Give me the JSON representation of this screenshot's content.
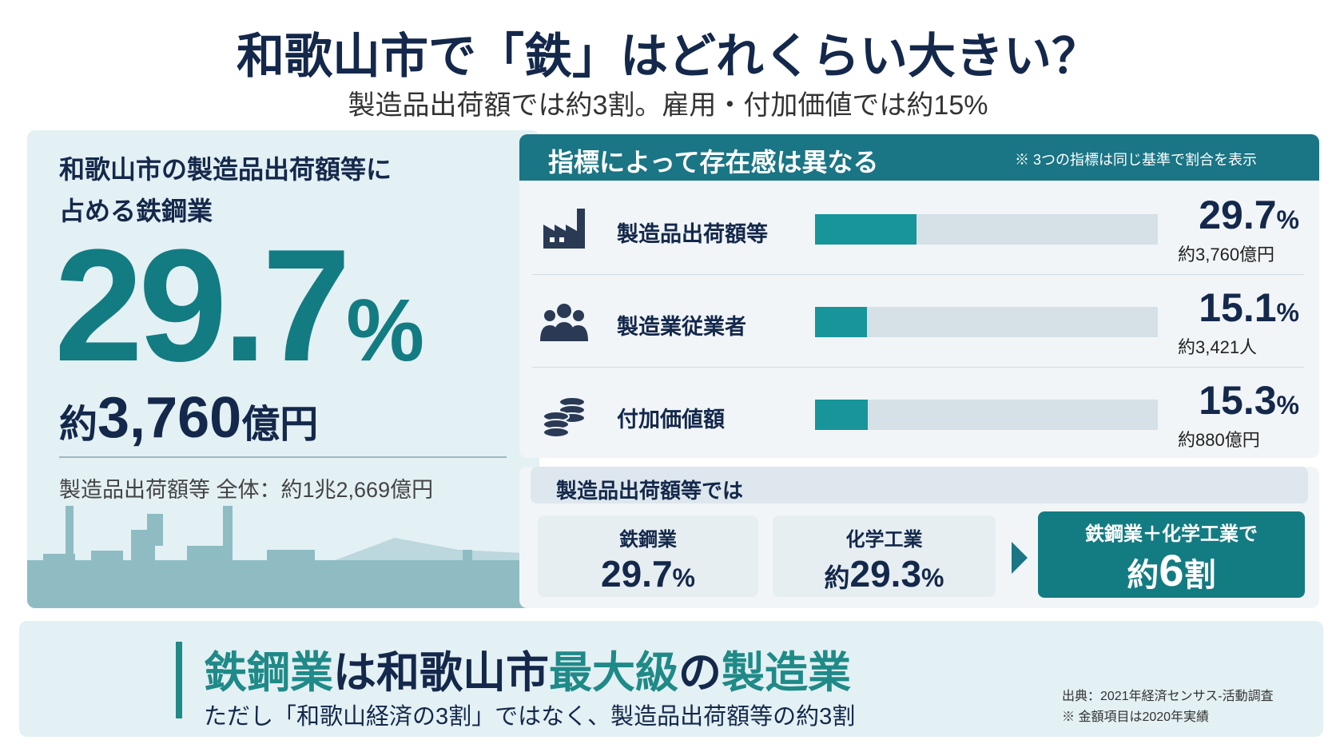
{
  "header": {
    "title": "和歌山市で「鉄」はどれくらい大きい？",
    "subtitle": "製造品出荷額では約3割。雇用・付加価値では約15%"
  },
  "left": {
    "heading_lines": [
      "和歌山市の製造品出荷額等に",
      "占める鉄鋼業"
    ],
    "percent": 29.7,
    "unit": "%",
    "amount_prefix": "約",
    "amount": "3,760",
    "amount_unit": "億円",
    "total": "製造品出荷額等 全体：約1兆2,669億円"
  },
  "indicators": {
    "title": "指標によって存在感は異なる",
    "note": "※ 3つの指標は同じ基準で割合を表示",
    "xlim": [
      0,
      100
    ],
    "rows": [
      {
        "label": "製造品出荷額等",
        "value": 29.7,
        "unit": "%",
        "detail": "約3,760億円"
      },
      {
        "label": "製造業従業者",
        "value": 15.1,
        "unit": "%",
        "detail": "約3,421人"
      },
      {
        "label": "付加価値額",
        "value": 15.3,
        "unit": "%",
        "detail": "約880億円"
      }
    ]
  },
  "comparison": {
    "title": "製造品出荷額等では",
    "items": [
      {
        "label": "鉄鋼業",
        "value": 29.7,
        "unit": "%"
      },
      {
        "label": "化学工業",
        "prefix": "約",
        "value": 29.3,
        "unit": "%"
      }
    ],
    "result": {
      "label": "鉄鋼業＋化学工業で",
      "prefix": "約",
      "value": 6,
      "unit": "割"
    }
  },
  "footer": {
    "headline_parts": [
      "鉄鋼業",
      "は和歌山市",
      "最大級",
      "の",
      "製造業"
    ],
    "sub": "ただし「和歌山経済の3割」ではなく、製造品出荷額等の約3割",
    "source": [
      "出典：2021年経済センサス-活動調査",
      "※ 金額項目は2020年実績"
    ]
  }
}
